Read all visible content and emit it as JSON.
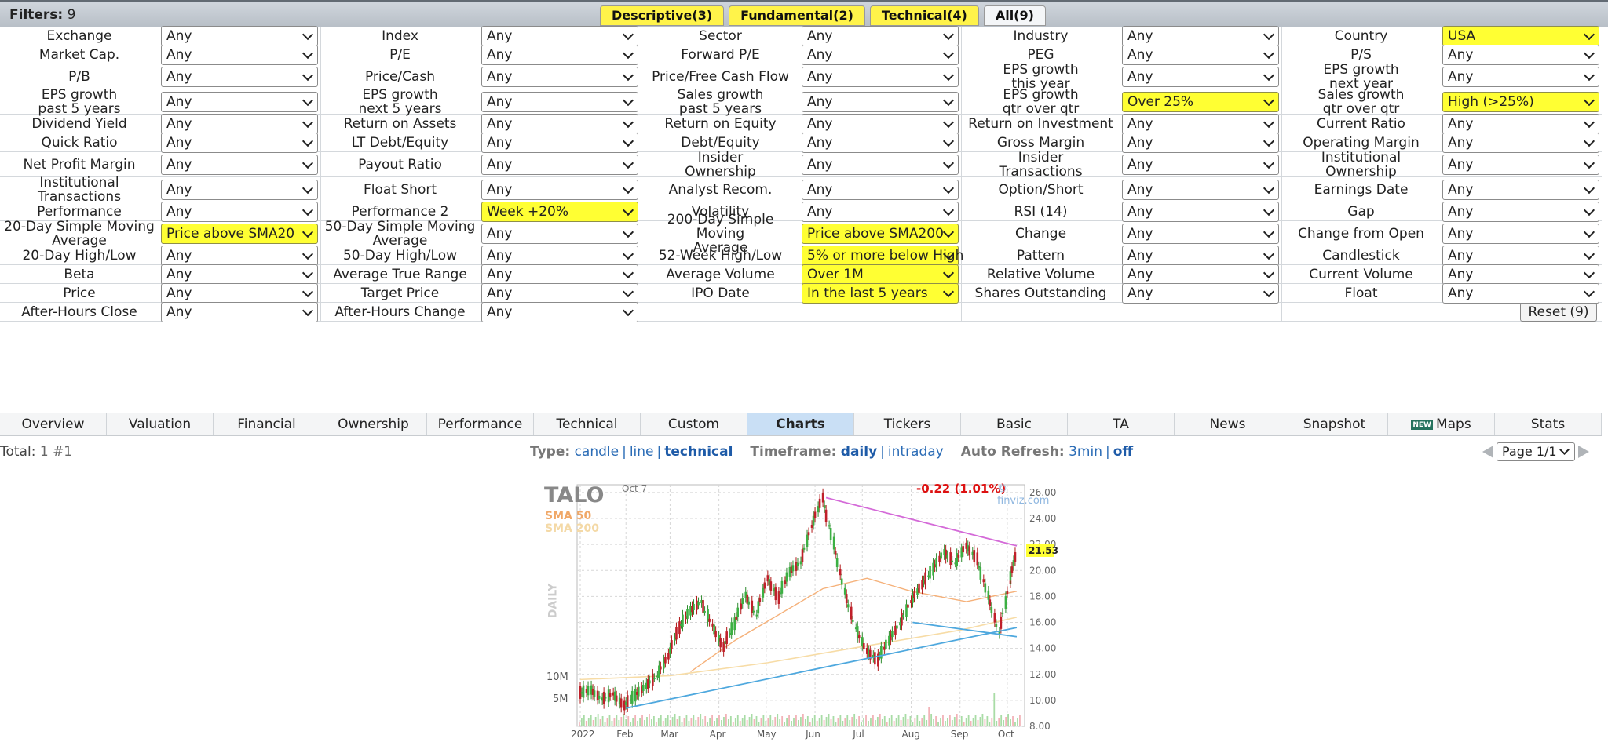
{
  "header": {
    "filters_label": "Filters:",
    "filters_count": "9",
    "tabs": [
      {
        "label": "Descriptive(3)"
      },
      {
        "label": "Fundamental(2)"
      },
      {
        "label": "Technical(4)"
      },
      {
        "label": "All(9)"
      }
    ]
  },
  "filters": [
    [
      [
        "Exchange",
        "Any"
      ],
      [
        "Index",
        "Any"
      ],
      [
        "Sector",
        "Any"
      ],
      [
        "Industry",
        "Any"
      ],
      [
        "Country",
        "USA"
      ]
    ],
    [
      [
        "Market Cap.",
        "Any"
      ],
      [
        "P/E",
        "Any"
      ],
      [
        "Forward P/E",
        "Any"
      ],
      [
        "PEG",
        "Any"
      ],
      [
        "P/S",
        "Any"
      ]
    ],
    [
      [
        "P/B",
        "Any"
      ],
      [
        "Price/Cash",
        "Any"
      ],
      [
        "Price/Free Cash Flow",
        "Any"
      ],
      [
        "EPS growth\nthis year",
        "Any"
      ],
      [
        "EPS growth\nnext year",
        "Any"
      ]
    ],
    [
      [
        "EPS growth\npast 5 years",
        "Any"
      ],
      [
        "EPS growth\nnext 5 years",
        "Any"
      ],
      [
        "Sales growth\npast 5 years",
        "Any"
      ],
      [
        "EPS growth\nqtr over qtr",
        "Over 25%"
      ],
      [
        "Sales growth\nqtr over qtr",
        "High (>25%)"
      ]
    ],
    [
      [
        "Dividend Yield",
        "Any"
      ],
      [
        "Return on Assets",
        "Any"
      ],
      [
        "Return on Equity",
        "Any"
      ],
      [
        "Return on Investment",
        "Any"
      ],
      [
        "Current Ratio",
        "Any"
      ]
    ],
    [
      [
        "Quick Ratio",
        "Any"
      ],
      [
        "LT Debt/Equity",
        "Any"
      ],
      [
        "Debt/Equity",
        "Any"
      ],
      [
        "Gross Margin",
        "Any"
      ],
      [
        "Operating Margin",
        "Any"
      ]
    ],
    [
      [
        "Net Profit Margin",
        "Any"
      ],
      [
        "Payout Ratio",
        "Any"
      ],
      [
        "Insider\nOwnership",
        "Any"
      ],
      [
        "Insider\nTransactions",
        "Any"
      ],
      [
        "Institutional\nOwnership",
        "Any"
      ]
    ],
    [
      [
        "Institutional\nTransactions",
        "Any"
      ],
      [
        "Float Short",
        "Any"
      ],
      [
        "Analyst Recom.",
        "Any"
      ],
      [
        "Option/Short",
        "Any"
      ],
      [
        "Earnings Date",
        "Any"
      ]
    ],
    [
      [
        "Performance",
        "Any"
      ],
      [
        "Performance 2",
        "Week +20%"
      ],
      [
        "Volatility",
        "Any"
      ],
      [
        "RSI (14)",
        "Any"
      ],
      [
        "Gap",
        "Any"
      ]
    ],
    [
      [
        "20-Day Simple Moving\nAverage",
        "Price above SMA20"
      ],
      [
        "50-Day Simple Moving\nAverage",
        "Any"
      ],
      [
        "200-Day Simple Moving\nAverage",
        "Price above SMA200"
      ],
      [
        "Change",
        "Any"
      ],
      [
        "Change from Open",
        "Any"
      ]
    ],
    [
      [
        "20-Day High/Low",
        "Any"
      ],
      [
        "50-Day High/Low",
        "Any"
      ],
      [
        "52-Week High/Low",
        "5% or more below High"
      ],
      [
        "Pattern",
        "Any"
      ],
      [
        "Candlestick",
        "Any"
      ]
    ],
    [
      [
        "Beta",
        "Any"
      ],
      [
        "Average True Range",
        "Any"
      ],
      [
        "Average Volume",
        "Over 1M"
      ],
      [
        "Relative Volume",
        "Any"
      ],
      [
        "Current Volume",
        "Any"
      ]
    ],
    [
      [
        "Price",
        "Any"
      ],
      [
        "Target Price",
        "Any"
      ],
      [
        "IPO Date",
        "In the last 5 years"
      ],
      [
        "Shares Outstanding",
        "Any"
      ],
      [
        "Float",
        "Any"
      ]
    ],
    [
      [
        "After-Hours Close",
        "Any"
      ],
      [
        "After-Hours Change",
        "Any"
      ]
    ]
  ],
  "reset_label": "Reset (9)",
  "views": [
    "Overview",
    "Valuation",
    "Financial",
    "Ownership",
    "Performance",
    "Technical",
    "Custom",
    "Charts",
    "Tickers",
    "Basic",
    "TA",
    "News",
    "Snapshot",
    "Maps",
    "Stats"
  ],
  "views_active": "Charts",
  "maps_badge": "NEW",
  "controls": {
    "total_label": "Total:",
    "total_value": "1 #1",
    "type_label": "Type:",
    "type_options": [
      "candle",
      "line",
      "technical"
    ],
    "type_current": "technical",
    "timeframe_label": "Timeframe:",
    "timeframe_options": [
      "daily",
      "intraday"
    ],
    "timeframe_current": "daily",
    "refresh_label": "Auto Refresh:",
    "refresh_options": [
      "3min",
      "off"
    ],
    "refresh_current": "off",
    "page_value": "Page 1/1"
  },
  "chart_data": {
    "type": "candlestick",
    "ticker": "TALO",
    "date_label": "Oct 7",
    "change_text": "-0.22 (1.01%)",
    "brand": "© finviz.com",
    "last_price": 21.53,
    "side_label": "DAILY",
    "legend": [
      "SMA 50",
      "SMA 200"
    ],
    "y_ticks": [
      8,
      10,
      12,
      14,
      16,
      18,
      20,
      22,
      24,
      26
    ],
    "y_tick_labels": [
      "8.00",
      "10.00",
      "12.00",
      "14.00",
      "16.00",
      "18.00",
      "20.00",
      "22.00",
      "24.00",
      "26.00"
    ],
    "ylim": [
      8,
      26.6
    ],
    "x_labels": [
      "2022",
      "Feb",
      "Mar",
      "Apr",
      "May",
      "Jun",
      "Jul",
      "Aug",
      "Sep",
      "Oct"
    ],
    "volume_labels": [
      "10M",
      "5M"
    ],
    "close_path": [
      [
        "2022-01-03",
        10.6
      ],
      [
        "2022-01-10",
        10.8
      ],
      [
        "2022-01-17",
        10.1
      ],
      [
        "2022-01-24",
        10.5
      ],
      [
        "2022-01-31",
        9.6
      ],
      [
        "2022-02-07",
        10.4
      ],
      [
        "2022-02-14",
        11.1
      ],
      [
        "2022-02-21",
        11.9
      ],
      [
        "2022-02-28",
        13.4
      ],
      [
        "2022-03-07",
        15.6
      ],
      [
        "2022-03-14",
        16.9
      ],
      [
        "2022-03-21",
        17.6
      ],
      [
        "2022-03-28",
        15.8
      ],
      [
        "2022-04-04",
        14.1
      ],
      [
        "2022-04-11",
        15.9
      ],
      [
        "2022-04-18",
        18.1
      ],
      [
        "2022-04-25",
        16.6
      ],
      [
        "2022-05-02",
        19.4
      ],
      [
        "2022-05-09",
        17.9
      ],
      [
        "2022-05-16",
        19.9
      ],
      [
        "2022-05-23",
        20.6
      ],
      [
        "2022-05-30",
        23.4
      ],
      [
        "2022-06-06",
        25.6
      ],
      [
        "2022-06-13",
        22.1
      ],
      [
        "2022-06-20",
        18.4
      ],
      [
        "2022-06-27",
        15.6
      ],
      [
        "2022-07-04",
        13.8
      ],
      [
        "2022-07-11",
        13.1
      ],
      [
        "2022-07-18",
        14.6
      ],
      [
        "2022-07-25",
        15.9
      ],
      [
        "2022-08-01",
        17.6
      ],
      [
        "2022-08-08",
        18.9
      ],
      [
        "2022-08-15",
        20.1
      ],
      [
        "2022-08-22",
        21.4
      ],
      [
        "2022-08-29",
        20.6
      ],
      [
        "2022-09-05",
        21.9
      ],
      [
        "2022-09-12",
        20.9
      ],
      [
        "2022-09-19",
        18.1
      ],
      [
        "2022-09-26",
        15.2
      ],
      [
        "2022-10-03",
        19.1
      ],
      [
        "2022-10-07",
        21.53
      ]
    ],
    "sma50": [
      [
        "2022-03-14",
        12.2
      ],
      [
        "2022-04-11",
        14.6
      ],
      [
        "2022-05-09",
        16.6
      ],
      [
        "2022-06-06",
        18.6
      ],
      [
        "2022-07-04",
        19.4
      ],
      [
        "2022-08-01",
        18.4
      ],
      [
        "2022-09-05",
        17.6
      ],
      [
        "2022-10-07",
        18.4
      ]
    ],
    "sma200": [
      [
        "2022-01-03",
        11.6
      ],
      [
        "2022-03-01",
        11.9
      ],
      [
        "2022-05-02",
        12.9
      ],
      [
        "2022-07-04",
        14.2
      ],
      [
        "2022-09-01",
        15.4
      ],
      [
        "2022-10-07",
        16.4
      ]
    ],
    "trendlines": [
      {
        "color": "#d46ad8",
        "from": [
          "2022-06-08",
          25.6
        ],
        "to": [
          "2022-10-07",
          21.9
        ]
      },
      {
        "color": "#4ea8de",
        "from": [
          "2022-02-01",
          9.4
        ],
        "to": [
          "2022-10-07",
          15.6
        ]
      },
      {
        "color": "#4ea8de",
        "from": [
          "2022-08-02",
          16.0
        ],
        "to": [
          "2022-10-07",
          14.9
        ]
      }
    ]
  }
}
